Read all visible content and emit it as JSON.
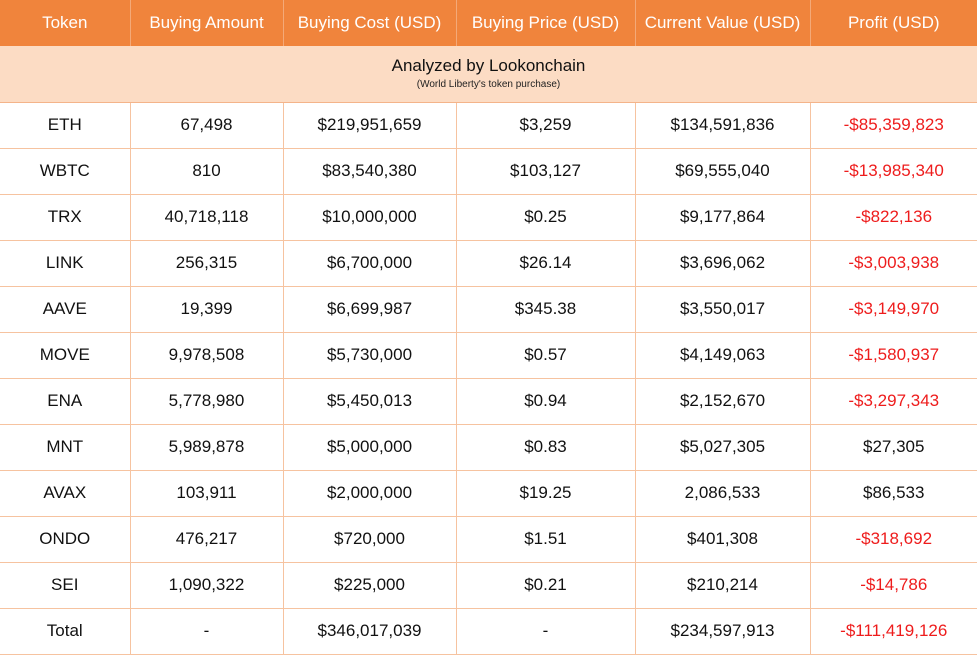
{
  "columns": [
    "Token",
    "Buying Amount",
    "Buying Cost (USD)",
    "Buying Price (USD)",
    "Current Value (USD)",
    "Profit (USD)"
  ],
  "caption": {
    "title": "Analyzed by Lookonchain",
    "subtitle": "(World Liberty's token purchase)"
  },
  "colors": {
    "header": "#f0843c",
    "caption": "#fcdcc4",
    "loss": "#ee1c1c",
    "gain": "#111111"
  },
  "rows": [
    {
      "token": "ETH",
      "amount": "67,498",
      "cost": "$219,951,659",
      "price": "$3,259",
      "value": "$134,591,836",
      "profit": "-$85,359,823",
      "loss": true
    },
    {
      "token": "WBTC",
      "amount": "810",
      "cost": "$83,540,380",
      "price": "$103,127",
      "value": "$69,555,040",
      "profit": "-$13,985,340",
      "loss": true
    },
    {
      "token": "TRX",
      "amount": "40,718,118",
      "cost": "$10,000,000",
      "price": "$0.25",
      "value": "$9,177,864",
      "profit": "-$822,136",
      "loss": true
    },
    {
      "token": "LINK",
      "amount": "256,315",
      "cost": "$6,700,000",
      "price": "$26.14",
      "value": "$3,696,062",
      "profit": "-$3,003,938",
      "loss": true
    },
    {
      "token": "AAVE",
      "amount": "19,399",
      "cost": "$6,699,987",
      "price": "$345.38",
      "value": "$3,550,017",
      "profit": "-$3,149,970",
      "loss": true
    },
    {
      "token": "MOVE",
      "amount": "9,978,508",
      "cost": "$5,730,000",
      "price": "$0.57",
      "value": "$4,149,063",
      "profit": "-$1,580,937",
      "loss": true
    },
    {
      "token": "ENA",
      "amount": "5,778,980",
      "cost": "$5,450,013",
      "price": "$0.94",
      "value": "$2,152,670",
      "profit": "-$3,297,343",
      "loss": true
    },
    {
      "token": "MNT",
      "amount": "5,989,878",
      "cost": "$5,000,000",
      "price": "$0.83",
      "value": "$5,027,305",
      "profit": "$27,305",
      "loss": false
    },
    {
      "token": "AVAX",
      "amount": "103,911",
      "cost": "$2,000,000",
      "price": "$19.25",
      "value": "2,086,533",
      "profit": "$86,533",
      "loss": false
    },
    {
      "token": "ONDO",
      "amount": "476,217",
      "cost": "$720,000",
      "price": "$1.51",
      "value": "$401,308",
      "profit": "-$318,692",
      "loss": true
    },
    {
      "token": "SEI",
      "amount": "1,090,322",
      "cost": "$225,000",
      "price": "$0.21",
      "value": "$210,214",
      "profit": "-$14,786",
      "loss": true
    },
    {
      "token": "Total",
      "amount": "-",
      "cost": "$346,017,039",
      "price": "-",
      "value": "$234,597,913",
      "profit": "-$111,419,126",
      "loss": true
    }
  ]
}
